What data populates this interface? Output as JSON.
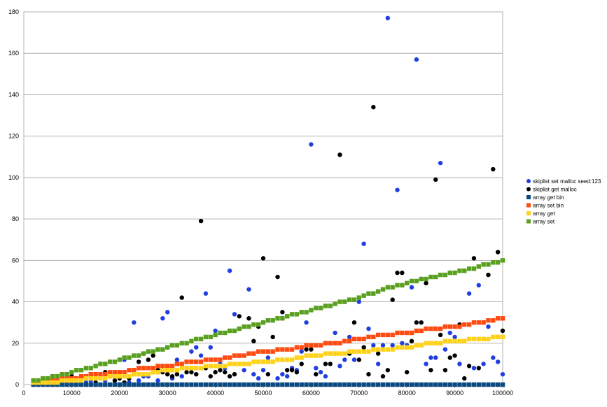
{
  "chart_data": {
    "type": "scatter",
    "title": "",
    "xlabel": "",
    "ylabel": "",
    "xlim": [
      0,
      100000
    ],
    "ylim": [
      0,
      180
    ],
    "xticks": [
      0,
      10000,
      20000,
      30000,
      40000,
      50000,
      60000,
      70000,
      80000,
      90000,
      100000
    ],
    "yticks": [
      0,
      20,
      40,
      60,
      80,
      100,
      120,
      140,
      160,
      180
    ],
    "xtick_labels": [
      "0",
      "10000",
      "20000",
      "30000",
      "40000",
      "50000",
      "60000",
      "70000",
      "80000",
      "90000",
      "100000"
    ],
    "ytick_labels": [
      "0",
      "20",
      "40",
      "60",
      "80",
      "100",
      "120",
      "140",
      "160",
      "180"
    ],
    "grid": "horizontal",
    "legend_position": "right",
    "series": [
      {
        "name": "skiplist set malloc seed:123",
        "marker": "circle",
        "color": "#1f3fe0",
        "points": [
          [
            2000,
            0
          ],
          [
            3000,
            1
          ],
          [
            4000,
            0
          ],
          [
            5000,
            1
          ],
          [
            6000,
            1
          ],
          [
            7000,
            0
          ],
          [
            8000,
            2
          ],
          [
            9000,
            1
          ],
          [
            10000,
            2
          ],
          [
            11000,
            0
          ],
          [
            12000,
            3
          ],
          [
            13000,
            1
          ],
          [
            14000,
            2
          ],
          [
            15000,
            0
          ],
          [
            16000,
            3
          ],
          [
            17000,
            2
          ],
          [
            18000,
            4
          ],
          [
            19000,
            4
          ],
          [
            20000,
            0
          ],
          [
            21000,
            12
          ],
          [
            22000,
            1
          ],
          [
            23000,
            30
          ],
          [
            24000,
            2
          ],
          [
            25000,
            4
          ],
          [
            26000,
            4
          ],
          [
            27000,
            16
          ],
          [
            28000,
            2
          ],
          [
            29000,
            32
          ],
          [
            30000,
            35
          ],
          [
            31000,
            3
          ],
          [
            32000,
            12
          ],
          [
            33000,
            4
          ],
          [
            34000,
            8
          ],
          [
            35000,
            16
          ],
          [
            36000,
            18
          ],
          [
            37000,
            14
          ],
          [
            38000,
            44
          ],
          [
            39000,
            18
          ],
          [
            40000,
            26
          ],
          [
            41000,
            10
          ],
          [
            42000,
            8
          ],
          [
            43000,
            55
          ],
          [
            44000,
            34
          ],
          [
            45000,
            27
          ],
          [
            46000,
            7
          ],
          [
            47000,
            46
          ],
          [
            48000,
            5
          ],
          [
            49000,
            3
          ],
          [
            50000,
            7
          ],
          [
            51000,
            13
          ],
          [
            52000,
            11
          ],
          [
            53000,
            3
          ],
          [
            54000,
            5
          ],
          [
            55000,
            4
          ],
          [
            56000,
            8
          ],
          [
            57000,
            7
          ],
          [
            58000,
            16
          ],
          [
            59000,
            30
          ],
          [
            60000,
            116
          ],
          [
            61000,
            8
          ],
          [
            62000,
            6
          ],
          [
            63000,
            4
          ],
          [
            64000,
            20
          ],
          [
            65000,
            25
          ],
          [
            66000,
            9
          ],
          [
            67000,
            12
          ],
          [
            68000,
            23
          ],
          [
            69000,
            12
          ],
          [
            70000,
            40
          ],
          [
            71000,
            68
          ],
          [
            72000,
            27
          ],
          [
            73000,
            19
          ],
          [
            74000,
            10
          ],
          [
            75000,
            19
          ],
          [
            76000,
            177
          ],
          [
            77000,
            19
          ],
          [
            78000,
            94
          ],
          [
            79000,
            20
          ],
          [
            80000,
            19
          ],
          [
            81000,
            47
          ],
          [
            82000,
            157
          ],
          [
            83000,
            51
          ],
          [
            84000,
            10
          ],
          [
            85000,
            13
          ],
          [
            86000,
            13
          ],
          [
            87000,
            107
          ],
          [
            88000,
            17
          ],
          [
            89000,
            25
          ],
          [
            90000,
            23
          ],
          [
            91000,
            10
          ],
          [
            92000,
            21
          ],
          [
            93000,
            44
          ],
          [
            94000,
            8
          ],
          [
            95000,
            48
          ],
          [
            96000,
            10
          ],
          [
            97000,
            28
          ],
          [
            98000,
            13
          ],
          [
            99000,
            11
          ],
          [
            100000,
            5
          ]
        ]
      },
      {
        "name": "skiplist get malloc",
        "marker": "circle",
        "color": "#000000",
        "points": [
          [
            2000,
            0
          ],
          [
            3000,
            0
          ],
          [
            4000,
            1
          ],
          [
            5000,
            0
          ],
          [
            6000,
            0
          ],
          [
            7000,
            1
          ],
          [
            8000,
            1
          ],
          [
            9000,
            3
          ],
          [
            10000,
            4
          ],
          [
            11000,
            2
          ],
          [
            12000,
            4
          ],
          [
            13000,
            4
          ],
          [
            14000,
            5
          ],
          [
            15000,
            1
          ],
          [
            16000,
            10
          ],
          [
            17000,
            6
          ],
          [
            18000,
            5
          ],
          [
            19000,
            2
          ],
          [
            20000,
            3
          ],
          [
            21000,
            1
          ],
          [
            22000,
            3
          ],
          [
            23000,
            6
          ],
          [
            24000,
            11
          ],
          [
            25000,
            15
          ],
          [
            26000,
            12
          ],
          [
            27000,
            14
          ],
          [
            28000,
            7
          ],
          [
            29000,
            6
          ],
          [
            30000,
            5
          ],
          [
            31000,
            4
          ],
          [
            32000,
            5
          ],
          [
            33000,
            42
          ],
          [
            34000,
            6
          ],
          [
            35000,
            6
          ],
          [
            36000,
            5
          ],
          [
            37000,
            79
          ],
          [
            38000,
            8
          ],
          [
            39000,
            4
          ],
          [
            40000,
            6
          ],
          [
            41000,
            7
          ],
          [
            42000,
            6
          ],
          [
            43000,
            4
          ],
          [
            44000,
            5
          ],
          [
            45000,
            33
          ],
          [
            46000,
            10
          ],
          [
            47000,
            32
          ],
          [
            48000,
            21
          ],
          [
            49000,
            28
          ],
          [
            50000,
            61
          ],
          [
            51000,
            5
          ],
          [
            52000,
            23
          ],
          [
            53000,
            52
          ],
          [
            54000,
            35
          ],
          [
            55000,
            7
          ],
          [
            56000,
            7
          ],
          [
            57000,
            6
          ],
          [
            58000,
            10
          ],
          [
            59000,
            17
          ],
          [
            60000,
            17
          ],
          [
            61000,
            5
          ],
          [
            62000,
            37
          ],
          [
            63000,
            10
          ],
          [
            64000,
            10
          ],
          [
            65000,
            15
          ],
          [
            66000,
            111
          ],
          [
            67000,
            21
          ],
          [
            68000,
            15
          ],
          [
            69000,
            30
          ],
          [
            70000,
            12
          ],
          [
            71000,
            18
          ],
          [
            72000,
            5
          ],
          [
            73000,
            134
          ],
          [
            74000,
            15
          ],
          [
            75000,
            4
          ],
          [
            76000,
            7
          ],
          [
            77000,
            41
          ],
          [
            78000,
            54
          ],
          [
            79000,
            54
          ],
          [
            80000,
            6
          ],
          [
            81000,
            21
          ],
          [
            82000,
            30
          ],
          [
            83000,
            30
          ],
          [
            84000,
            49
          ],
          [
            85000,
            7
          ],
          [
            86000,
            99
          ],
          [
            87000,
            24
          ],
          [
            88000,
            7
          ],
          [
            89000,
            13
          ],
          [
            90000,
            14
          ],
          [
            91000,
            29
          ],
          [
            92000,
            3
          ],
          [
            93000,
            9
          ],
          [
            94000,
            61
          ],
          [
            95000,
            8
          ],
          [
            96000,
            22
          ],
          [
            97000,
            53
          ],
          [
            98000,
            104
          ],
          [
            99000,
            64
          ],
          [
            100000,
            26
          ]
        ]
      },
      {
        "name": "array get bin",
        "marker": "square",
        "color": "#0a4a80",
        "points": [
          [
            2000,
            0
          ],
          [
            5000,
            0
          ],
          [
            10000,
            0
          ],
          [
            15000,
            0
          ],
          [
            20000,
            0
          ],
          [
            25000,
            0
          ],
          [
            30000,
            0
          ],
          [
            35000,
            0
          ],
          [
            40000,
            0
          ],
          [
            45000,
            0
          ],
          [
            50000,
            0
          ],
          [
            55000,
            0
          ],
          [
            60000,
            0
          ],
          [
            65000,
            0
          ],
          [
            70000,
            0
          ],
          [
            75000,
            0
          ],
          [
            80000,
            0
          ],
          [
            85000,
            0
          ],
          [
            90000,
            0
          ],
          [
            95000,
            0
          ],
          [
            100000,
            0
          ]
        ]
      },
      {
        "name": "array set bin",
        "marker": "square",
        "color": "#ff4a10",
        "points": [
          [
            2000,
            1
          ],
          [
            5000,
            2
          ],
          [
            10000,
            3
          ],
          [
            15000,
            5
          ],
          [
            20000,
            6
          ],
          [
            25000,
            8
          ],
          [
            30000,
            9
          ],
          [
            35000,
            11
          ],
          [
            40000,
            12
          ],
          [
            45000,
            14
          ],
          [
            50000,
            16
          ],
          [
            55000,
            17
          ],
          [
            60000,
            19
          ],
          [
            65000,
            20
          ],
          [
            70000,
            22
          ],
          [
            75000,
            24
          ],
          [
            80000,
            25
          ],
          [
            85000,
            27
          ],
          [
            90000,
            28
          ],
          [
            95000,
            30
          ],
          [
            100000,
            32
          ]
        ]
      },
      {
        "name": "array get",
        "marker": "square",
        "color": "#ffd21a",
        "points": [
          [
            2000,
            1
          ],
          [
            5000,
            1
          ],
          [
            10000,
            2
          ],
          [
            15000,
            3
          ],
          [
            20000,
            4
          ],
          [
            25000,
            5
          ],
          [
            30000,
            7
          ],
          [
            35000,
            8
          ],
          [
            40000,
            9
          ],
          [
            45000,
            10
          ],
          [
            50000,
            11
          ],
          [
            55000,
            12
          ],
          [
            60000,
            14
          ],
          [
            65000,
            15
          ],
          [
            70000,
            16
          ],
          [
            75000,
            17
          ],
          [
            80000,
            18
          ],
          [
            85000,
            20
          ],
          [
            90000,
            21
          ],
          [
            95000,
            22
          ],
          [
            100000,
            23
          ]
        ]
      },
      {
        "name": "array set",
        "marker": "square",
        "color": "#5aa020",
        "points": [
          [
            2000,
            2
          ],
          [
            5000,
            3
          ],
          [
            10000,
            6
          ],
          [
            15000,
            9
          ],
          [
            20000,
            12
          ],
          [
            25000,
            15
          ],
          [
            30000,
            18
          ],
          [
            35000,
            21
          ],
          [
            40000,
            24
          ],
          [
            45000,
            27
          ],
          [
            50000,
            30
          ],
          [
            55000,
            33
          ],
          [
            60000,
            36
          ],
          [
            65000,
            39
          ],
          [
            70000,
            42
          ],
          [
            75000,
            46
          ],
          [
            80000,
            49
          ],
          [
            85000,
            52
          ],
          [
            90000,
            54
          ],
          [
            95000,
            57
          ],
          [
            100000,
            60
          ]
        ]
      }
    ]
  }
}
